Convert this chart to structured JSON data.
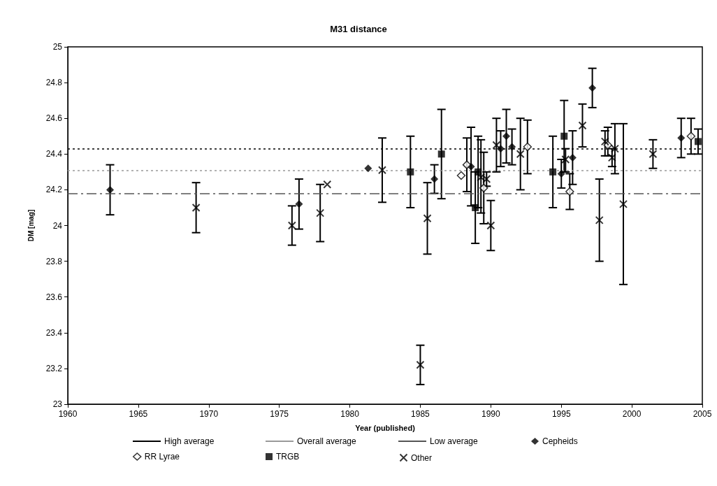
{
  "chart_data": {
    "type": "scatter",
    "title": "M31 distance",
    "xlabel": "Year (published)",
    "ylabel": "DM [mag]",
    "xlim": [
      1960,
      2005
    ],
    "xticks": [
      1960,
      1965,
      1970,
      1975,
      1980,
      1985,
      1990,
      1995,
      2000,
      2005
    ],
    "ylim": [
      23,
      25
    ],
    "yticks": [
      23,
      23.2,
      23.4,
      23.6,
      23.8,
      24,
      24.2,
      24.4,
      24.6,
      24.8,
      25
    ],
    "grid": false,
    "legend": "bottom",
    "ref_lines": [
      {
        "axis": "y",
        "value": 24.43,
        "label": "High average",
        "color": "#000000",
        "line_style": "dotted"
      },
      {
        "axis": "y",
        "value": 24.31,
        "label": "Overall average",
        "color": "#999999",
        "line_style": "dotted"
      },
      {
        "axis": "y",
        "value": 24.18,
        "label": "Low average",
        "color": "#555555",
        "line_style": "dashed"
      }
    ],
    "series": [
      {
        "name": "Cepheids",
        "color": "#000000",
        "marker": "diamond",
        "x": [
          1963.0,
          1976.4,
          1981.3,
          1986.0,
          1988.6,
          1990.7,
          1991.1,
          1991.5,
          1995.0,
          1995.8,
          1997.2,
          2003.5
        ],
        "values": [
          24.2,
          24.12,
          24.32,
          24.26,
          24.33,
          24.43,
          24.5,
          24.44,
          24.29,
          24.38,
          24.77,
          24.49
        ],
        "errors": [
          [
            24.06,
            24.34
          ],
          [
            23.98,
            24.26
          ],
          null,
          [
            24.18,
            24.34
          ],
          [
            24.11,
            24.55
          ],
          [
            24.33,
            24.53
          ],
          [
            24.35,
            24.65
          ],
          [
            24.34,
            24.54
          ],
          [
            24.21,
            24.37
          ],
          [
            24.23,
            24.53
          ],
          [
            24.66,
            24.88
          ],
          [
            24.38,
            24.6
          ]
        ]
      },
      {
        "name": "RR Lyrae",
        "color": "#000000",
        "marker": "diamond-open",
        "x": [
          1987.9,
          1988.3,
          1989.5,
          1992.6,
          1995.6,
          1998.3,
          2004.2
        ],
        "values": [
          24.28,
          24.34,
          24.21,
          24.44,
          24.19,
          24.45,
          24.5
        ],
        "errors": [
          null,
          [
            24.19,
            24.49
          ],
          [
            24.01,
            24.41
          ],
          [
            24.29,
            24.59
          ],
          [
            24.09,
            24.29
          ],
          [
            24.39,
            24.55
          ],
          [
            24.4,
            24.6
          ]
        ]
      },
      {
        "name": "TRGB",
        "color": "#000000",
        "marker": "square",
        "x": [
          1984.3,
          1986.5,
          1988.9,
          1989.1,
          1994.4,
          1995.2,
          2004.7
        ],
        "values": [
          24.3,
          24.4,
          24.1,
          24.3,
          24.3,
          24.5,
          24.47
        ],
        "errors": [
          [
            24.1,
            24.5
          ],
          [
            24.15,
            24.65
          ],
          [
            23.9,
            24.3
          ],
          [
            24.1,
            24.5
          ],
          [
            24.1,
            24.5
          ],
          [
            24.3,
            24.7
          ],
          [
            24.4,
            24.54
          ]
        ]
      },
      {
        "name": "Other",
        "color": "#000000",
        "marker": "cross",
        "x": [
          1969.1,
          1975.9,
          1977.9,
          1978.4,
          1982.3,
          1985.0,
          1985.5,
          1989.3,
          1989.7,
          1990.0,
          1990.4,
          1992.1,
          1995.3,
          1996.5,
          1997.7,
          1998.1,
          1998.6,
          1998.8,
          1999.4,
          2001.5
        ],
        "values": [
          24.1,
          24.0,
          24.07,
          24.23,
          24.31,
          23.22,
          24.04,
          24.27,
          24.26,
          24.0,
          24.45,
          24.4,
          24.37,
          24.56,
          24.03,
          24.47,
          24.38,
          24.43,
          24.12,
          24.4
        ],
        "errors": [
          [
            23.96,
            24.24
          ],
          [
            23.89,
            24.11
          ],
          [
            23.91,
            24.23
          ],
          null,
          [
            24.13,
            24.49
          ],
          [
            23.11,
            23.33
          ],
          [
            23.84,
            24.24
          ],
          [
            24.07,
            24.48
          ],
          [
            24.22,
            24.3
          ],
          [
            23.86,
            24.14
          ],
          [
            24.3,
            24.6
          ],
          [
            24.2,
            24.6
          ],
          [
            24.3,
            24.43
          ],
          [
            24.44,
            24.68
          ],
          [
            23.8,
            24.26
          ],
          [
            24.39,
            24.53
          ],
          [
            24.33,
            24.43
          ],
          [
            24.29,
            24.57
          ],
          [
            23.67,
            24.57
          ],
          [
            24.32,
            24.48
          ]
        ]
      }
    ]
  }
}
